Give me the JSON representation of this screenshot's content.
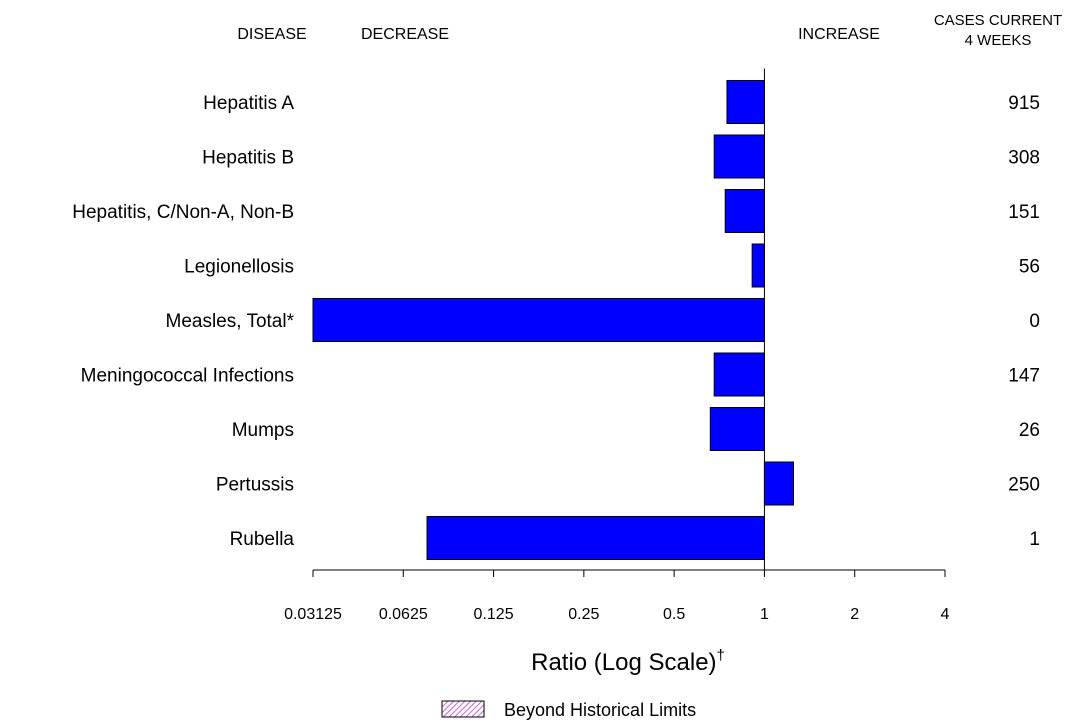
{
  "headers": {
    "disease": "DISEASE",
    "decrease": "DECREASE",
    "increase": "INCREASE",
    "cases_line1": "CASES CURRENT",
    "cases_line2": "4 WEEKS"
  },
  "legend": {
    "label": "Beyond Historical Limits"
  },
  "colors": {
    "bar_fill": "#0000ff",
    "bar_stroke": "#000000",
    "legend_hatch": "#cc66cc"
  },
  "chart_data": {
    "type": "bar",
    "orientation": "horizontal",
    "x_scale": "log2",
    "xlabel": "Ratio (Log Scale)",
    "xlabel_mark": "†",
    "xlim": [
      0.03125,
      4
    ],
    "xticks": [
      "0.03125",
      "0.0625",
      "0.125",
      "0.25",
      "0.5",
      "1",
      "2",
      "4"
    ],
    "baseline": 1,
    "categories": [
      "Hepatitis A",
      "Hepatitis B",
      "Hepatitis, C/Non-A, Non-B",
      "Legionellosis",
      "Measles, Total*",
      "Meningococcal Infections",
      "Mumps",
      "Pertussis",
      "Rubella"
    ],
    "values": [
      0.75,
      0.68,
      0.74,
      0.91,
      0.03125,
      0.68,
      0.66,
      1.25,
      0.075
    ],
    "cases_current_4_weeks": [
      "915",
      "308",
      "151",
      "56",
      "0",
      "147",
      "26",
      "250",
      "1"
    ]
  }
}
